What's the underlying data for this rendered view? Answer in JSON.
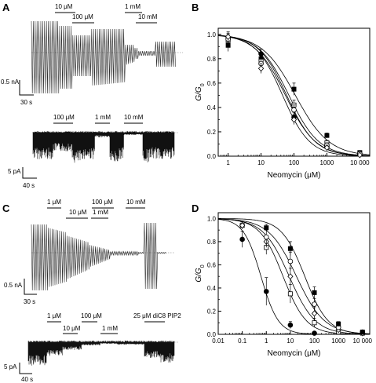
{
  "panels": {
    "A": {
      "label": "A",
      "top_labels": [
        "10 μM",
        "100 μM",
        "1 mM",
        "10 mM"
      ],
      "top_scale": {
        "y": "0.5 nA",
        "x": "30 s"
      },
      "bottom_labels": [
        "100 μM",
        "1 mM",
        "10 mM"
      ],
      "bottom_scale": {
        "y": "5 pA",
        "x": "40 s"
      }
    },
    "C": {
      "label": "C",
      "top_labels": [
        "1 μM",
        "10 μM",
        "100 μM",
        "1 mM",
        "10 mM"
      ],
      "top_scale": {
        "y": "0.5 nA",
        "x": "30 s"
      },
      "bottom_labels": [
        "1 μM",
        "10 μM",
        "100 μM",
        "1 mM",
        "25 μM diC8 PIP2"
      ],
      "bottom_scale": {
        "y": "5 pA",
        "x": "40 s"
      }
    }
  },
  "chart_data": [
    {
      "panel": "B",
      "type": "scatter",
      "xscale": "log",
      "xlim": [
        0.5,
        20000
      ],
      "ylim": [
        0,
        1.05
      ],
      "xlabel": "Neomycin (μM)",
      "ylabel": "G/G0",
      "xticks": [
        1,
        10,
        100,
        1000,
        10000
      ],
      "xtick_labels": [
        "1",
        "10",
        "100",
        "1000",
        "10 000"
      ],
      "yticks": [
        0,
        0.2,
        0.4,
        0.6,
        0.8,
        1.0
      ],
      "ytick_labels": [
        "0.0",
        "0.2",
        "0.4",
        "0.6",
        "0.8",
        "1.0"
      ],
      "series": [
        {
          "marker": "filled-square",
          "x": [
            1,
            10,
            100,
            1000,
            10000
          ],
          "y": [
            0.91,
            0.8,
            0.55,
            0.17,
            0.03
          ],
          "err": [
            0.05,
            0.04,
            0.05,
            0.02,
            0.01
          ],
          "ic50": 110,
          "hill": 0.85
        },
        {
          "marker": "filled-circle",
          "x": [
            1,
            10,
            100,
            1000,
            10000
          ],
          "y": [
            0.97,
            0.84,
            0.32,
            0.08,
            0.02
          ],
          "err": [
            0.04,
            0.04,
            0.04,
            0.02,
            0.01
          ],
          "ic50": 60,
          "hill": 1.0
        },
        {
          "marker": "open-square",
          "x": [
            1,
            10,
            100,
            1000,
            10000
          ],
          "y": [
            0.95,
            0.78,
            0.42,
            0.11,
            0.02
          ],
          "err": [
            0.04,
            0.04,
            0.04,
            0.02,
            0.01
          ],
          "ic50": 70,
          "hill": 0.95
        },
        {
          "marker": "open-circle",
          "x": [
            1,
            10,
            100,
            1000,
            10000
          ],
          "y": [
            0.96,
            0.76,
            0.38,
            0.09,
            0.02
          ],
          "err": [
            0.04,
            0.04,
            0.04,
            0.02,
            0.01
          ],
          "ic50": 55,
          "hill": 0.95
        },
        {
          "marker": "open-diamond",
          "x": [
            1,
            10,
            100,
            1000,
            10000
          ],
          "y": [
            0.98,
            0.72,
            0.3,
            0.07,
            0.01
          ],
          "err": [
            0.04,
            0.04,
            0.04,
            0.02,
            0.01
          ],
          "ic50": 45,
          "hill": 1.05
        }
      ]
    },
    {
      "panel": "D",
      "type": "scatter",
      "xscale": "log",
      "xlim": [
        0.01,
        20000
      ],
      "ylim": [
        0,
        1.05
      ],
      "xlabel": "Neomycin (μM)",
      "ylabel": "G/G0",
      "xticks": [
        0.01,
        0.1,
        1,
        10,
        100,
        1000,
        10000
      ],
      "xtick_labels": [
        "0.01",
        "0.1",
        "1",
        "10",
        "100",
        "1000",
        "10 000"
      ],
      "yticks": [
        0,
        0.2,
        0.4,
        0.6,
        0.8,
        1.0
      ],
      "ytick_labels": [
        "0.0",
        "0.2",
        "0.4",
        "0.6",
        "0.8",
        "1.0"
      ],
      "series": [
        {
          "marker": "filled-circle",
          "x": [
            0.1,
            1,
            10,
            100
          ],
          "y": [
            0.82,
            0.37,
            0.08,
            0.01
          ],
          "err": [
            0.07,
            0.12,
            0.03,
            0.01
          ],
          "ic50": 0.6,
          "hill": 1.2
        },
        {
          "marker": "open-square",
          "x": [
            0.1,
            1,
            10,
            100,
            1000,
            10000
          ],
          "y": [
            0.94,
            0.75,
            0.35,
            0.1,
            0.02,
            0.01
          ],
          "err": [
            0.03,
            0.06,
            0.08,
            0.04,
            0.01,
            0.01
          ],
          "ic50": 5,
          "hill": 0.9
        },
        {
          "marker": "open-diamond",
          "x": [
            0.1,
            1,
            10,
            100,
            1000,
            10000
          ],
          "y": [
            0.94,
            0.8,
            0.5,
            0.18,
            0.04,
            0.01
          ],
          "err": [
            0.03,
            0.05,
            0.07,
            0.05,
            0.02,
            0.01
          ],
          "ic50": 9,
          "hill": 0.8
        },
        {
          "marker": "open-circle",
          "x": [
            1,
            10,
            100,
            1000,
            10000
          ],
          "y": [
            0.84,
            0.63,
            0.26,
            0.06,
            0.02
          ],
          "err": [
            0.06,
            0.08,
            0.05,
            0.02,
            0.01
          ],
          "ic50": 18,
          "hill": 0.75
        },
        {
          "marker": "filled-square",
          "x": [
            1,
            10,
            100,
            1000,
            10000
          ],
          "y": [
            0.92,
            0.74,
            0.36,
            0.09,
            0.02
          ],
          "err": [
            0.03,
            0.06,
            0.05,
            0.02,
            0.01
          ],
          "ic50": 40,
          "hill": 0.9
        }
      ]
    }
  ]
}
